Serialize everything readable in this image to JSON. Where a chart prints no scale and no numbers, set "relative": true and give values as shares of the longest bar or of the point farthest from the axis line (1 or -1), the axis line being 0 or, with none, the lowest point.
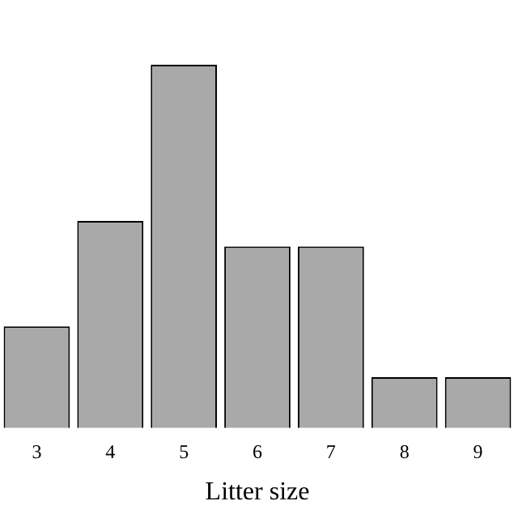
{
  "chart_data": {
    "type": "bar",
    "xlabel": "Litter size",
    "categories": [
      "3",
      "4",
      "5",
      "6",
      "7",
      "8",
      "9"
    ],
    "values": [
      0.28,
      0.57,
      1,
      0.5,
      0.5,
      0.14,
      0.14
    ],
    "color": "#a9a9a9",
    "relative": true,
    "grid": false,
    "legend": false
  }
}
